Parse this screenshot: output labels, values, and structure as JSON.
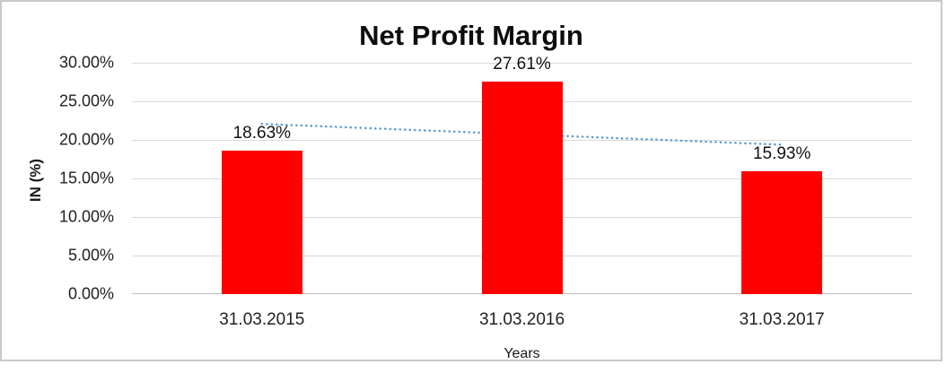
{
  "chart_data": {
    "type": "bar",
    "title": "Net Profit Margin",
    "xlabel": "Years",
    "ylabel": "IN (%)",
    "categories": [
      "31.03.2015",
      "31.03.2016",
      "31.03.2017"
    ],
    "values": [
      18.63,
      27.61,
      15.93
    ],
    "value_labels": [
      "18.63%",
      "27.61%",
      "15.93%"
    ],
    "yticks": [
      "30.00%",
      "25.00%",
      "20.00%",
      "15.00%",
      "10.00%",
      "5.00%",
      "0.00%"
    ],
    "ylim": [
      0,
      30
    ],
    "grid": "horizontal",
    "legend": "none",
    "bar_color": "#ff0000",
    "trendline": {
      "type": "linear",
      "style": "dotted",
      "color": "#5b9bd5",
      "start_value": 22.07,
      "end_value": 19.37
    }
  }
}
